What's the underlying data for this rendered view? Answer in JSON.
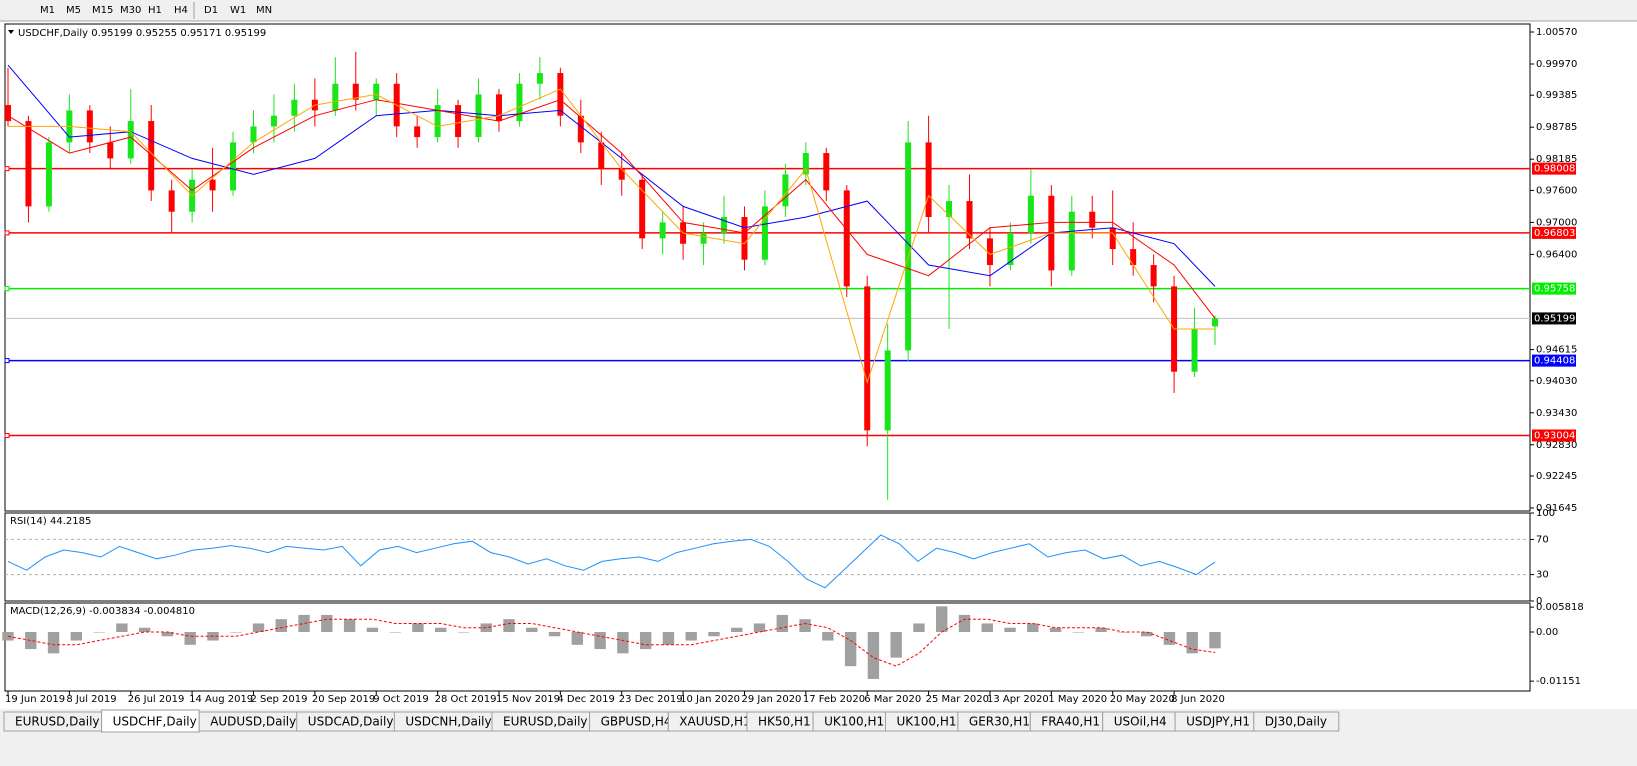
{
  "toolbar": {
    "timeframes": [
      "M1",
      "M5",
      "M15",
      "M30",
      "H1",
      "H4",
      "D1",
      "W1",
      "MN"
    ]
  },
  "tabs": {
    "items": [
      "EURUSD,Daily",
      "USDCHF,Daily",
      "AUDUSD,Daily",
      "USDCAD,Daily",
      "USDCNH,Daily",
      "EURUSD,Daily",
      "GBPUSD,H4",
      "XAUUSD,H1",
      "HK50,H1",
      "UK100,H1",
      "UK100,H1",
      "GER30,H1",
      "FRA40,H1",
      "USOil,H4",
      "USDJPY,H1",
      "DJ30,Daily"
    ],
    "active": 1
  },
  "chart_data": [
    {
      "type": "candlestick",
      "title": "USDCHF,Daily  0.95199 0.95255 0.95171 0.95199",
      "colors": {
        "up": "#19e619",
        "down": "#ff0000"
      },
      "open": [
        0.992,
        0.989,
        0.973,
        0.985,
        0.991,
        0.985,
        0.982,
        0.989,
        0.976,
        0.972,
        0.978,
        0.976,
        0.985,
        0.988,
        0.99,
        0.993,
        0.991,
        0.996,
        0.993,
        0.996,
        0.988,
        0.986,
        0.992,
        0.986,
        0.994,
        0.989,
        0.996,
        0.998,
        0.99,
        0.985,
        0.98,
        0.978,
        0.967,
        0.97,
        0.966,
        0.968,
        0.971,
        0.963,
        0.973,
        0.979,
        0.983,
        0.976,
        0.958,
        0.931,
        0.946,
        0.985,
        0.971,
        0.974,
        0.967,
        0.962,
        0.968,
        0.975,
        0.961,
        0.972,
        0.969,
        0.965,
        0.962,
        0.958,
        0.942,
        0.9505
      ],
      "high": [
        0.999,
        0.99,
        0.986,
        0.994,
        0.992,
        0.988,
        0.995,
        0.992,
        0.978,
        0.98,
        0.984,
        0.987,
        0.991,
        0.994,
        0.996,
        0.997,
        1.001,
        1.002,
        0.997,
        0.998,
        0.99,
        0.995,
        0.993,
        0.997,
        0.995,
        0.998,
        1.001,
        0.999,
        0.993,
        0.987,
        0.983,
        0.979,
        0.972,
        0.973,
        0.97,
        0.975,
        0.973,
        0.976,
        0.981,
        0.985,
        0.984,
        0.977,
        0.96,
        0.951,
        0.989,
        0.99,
        0.977,
        0.979,
        0.969,
        0.97,
        0.98,
        0.977,
        0.975,
        0.975,
        0.976,
        0.97,
        0.964,
        0.96,
        0.954,
        0.95255
      ],
      "low": [
        0.988,
        0.97,
        0.972,
        0.983,
        0.983,
        0.98,
        0.981,
        0.974,
        0.968,
        0.97,
        0.972,
        0.975,
        0.983,
        0.985,
        0.987,
        0.988,
        0.99,
        0.991,
        0.99,
        0.986,
        0.984,
        0.985,
        0.984,
        0.985,
        0.987,
        0.988,
        0.993,
        0.988,
        0.983,
        0.977,
        0.975,
        0.965,
        0.964,
        0.963,
        0.962,
        0.966,
        0.961,
        0.962,
        0.971,
        0.977,
        0.974,
        0.956,
        0.928,
        0.918,
        0.944,
        0.968,
        0.95,
        0.965,
        0.958,
        0.961,
        0.966,
        0.958,
        0.96,
        0.967,
        0.962,
        0.96,
        0.955,
        0.938,
        0.941,
        0.947
      ],
      "close": [
        0.989,
        0.973,
        0.985,
        0.991,
        0.985,
        0.982,
        0.989,
        0.976,
        0.972,
        0.978,
        0.976,
        0.985,
        0.988,
        0.99,
        0.993,
        0.991,
        0.996,
        0.993,
        0.996,
        0.988,
        0.986,
        0.992,
        0.986,
        0.994,
        0.989,
        0.996,
        0.998,
        0.99,
        0.985,
        0.98,
        0.978,
        0.967,
        0.97,
        0.966,
        0.968,
        0.971,
        0.963,
        0.973,
        0.979,
        0.983,
        0.976,
        0.958,
        0.931,
        0.946,
        0.985,
        0.971,
        0.974,
        0.967,
        0.962,
        0.968,
        0.975,
        0.961,
        0.972,
        0.969,
        0.965,
        0.962,
        0.958,
        0.942,
        0.95,
        0.95199
      ],
      "xlim": [
        0,
        59
      ],
      "xticks": [
        {
          "value": 0,
          "label": "19 Jun 2019"
        },
        {
          "value": 3,
          "label": "8 Jul 2019"
        },
        {
          "value": 6,
          "label": "26 Jul 2019"
        },
        {
          "value": 9,
          "label": "14 Aug 2019"
        },
        {
          "value": 12,
          "label": "2 Sep 2019"
        },
        {
          "value": 15,
          "label": "20 Sep 2019"
        },
        {
          "value": 18,
          "label": "9 Oct 2019"
        },
        {
          "value": 21,
          "label": "28 Oct 2019"
        },
        {
          "value": 24,
          "label": "15 Nov 2019"
        },
        {
          "value": 27,
          "label": "4 Dec 2019"
        },
        {
          "value": 30,
          "label": "23 Dec 2019"
        },
        {
          "value": 33,
          "label": "10 Jan 2020"
        },
        {
          "value": 36,
          "label": "29 Jan 2020"
        },
        {
          "value": 39,
          "label": "17 Feb 2020"
        },
        {
          "value": 42,
          "label": "6 Mar 2020"
        },
        {
          "value": 45,
          "label": "25 Mar 2020"
        },
        {
          "value": 48,
          "label": "13 Apr 2020"
        },
        {
          "value": 51,
          "label": "1 May 2020"
        },
        {
          "value": 54,
          "label": "20 May 2020"
        },
        {
          "value": 57,
          "label": "8 Jun 2020"
        }
      ],
      "ylim": [
        0.91588,
        1.0072
      ],
      "yticks": [
        {
          "value": 1.0057,
          "label": "1.00570"
        },
        {
          "value": 0.9997,
          "label": "0.99970"
        },
        0.99385,
        0.98785,
        0.98185,
        {
          "value": 0.976,
          "label": "0.97600"
        },
        {
          "value": 0.97,
          "label": "0.97000"
        },
        {
          "value": 0.964,
          "label": "0.96400"
        },
        0.94615,
        {
          "value": 0.9403,
          "label": "0.94030"
        },
        {
          "value": 0.9343,
          "label": "0.93430"
        },
        {
          "value": 0.9283,
          "label": "0.92830"
        },
        0.92245,
        0.91645
      ],
      "series": [
        {
          "color": "#0000ff",
          "x": [
            0,
            3,
            6,
            9,
            12,
            15,
            18,
            21,
            24,
            27,
            30,
            33,
            36,
            39,
            42,
            45,
            48,
            51,
            54,
            57,
            59
          ],
          "values": [
            0.9995,
            0.986,
            0.987,
            0.982,
            0.979,
            0.982,
            0.99,
            0.991,
            0.99,
            0.991,
            0.982,
            0.973,
            0.969,
            0.971,
            0.974,
            0.962,
            0.96,
            0.968,
            0.969,
            0.966,
            0.958
          ]
        },
        {
          "color": "#ff0000",
          "x": [
            0,
            3,
            6,
            9,
            12,
            15,
            18,
            21,
            24,
            27,
            30,
            33,
            36,
            39,
            42,
            45,
            48,
            51,
            54,
            57,
            59
          ],
          "values": [
            0.99,
            0.983,
            0.986,
            0.976,
            0.984,
            0.99,
            0.993,
            0.991,
            0.989,
            0.993,
            0.983,
            0.97,
            0.968,
            0.978,
            0.964,
            0.96,
            0.969,
            0.97,
            0.97,
            0.962,
            0.952
          ]
        },
        {
          "color": "#ffa500",
          "x": [
            0,
            3,
            6,
            9,
            12,
            15,
            18,
            21,
            24,
            27,
            30,
            33,
            36,
            39,
            42,
            45,
            48,
            51,
            54,
            57,
            59
          ],
          "values": [
            0.988,
            0.988,
            0.987,
            0.975,
            0.985,
            0.992,
            0.994,
            0.988,
            0.99,
            0.995,
            0.98,
            0.968,
            0.966,
            0.98,
            0.94,
            0.975,
            0.964,
            0.968,
            0.968,
            0.95,
            0.95
          ]
        }
      ],
      "levels": [
        {
          "value": 0.98008,
          "color": "#ff0000"
        },
        {
          "value": 0.96803,
          "color": "#ff0000"
        },
        {
          "value": 0.95758,
          "color": "#00ee00"
        },
        {
          "value": 0.94408,
          "color": "#0000ff"
        },
        {
          "value": 0.93004,
          "color": "#ff0000"
        }
      ],
      "last_price": 0.95199
    },
    {
      "type": "line",
      "title": "RSI(14) 44.2185",
      "ylim": [
        0,
        100
      ],
      "yticks": [
        0,
        30,
        70,
        100
      ],
      "levels": [
        30,
        70
      ],
      "series": [
        {
          "color": "#1e90ff",
          "values": [
            45,
            35,
            50,
            58,
            55,
            50,
            62,
            55,
            48,
            52,
            58,
            60,
            63,
            60,
            55,
            62,
            60,
            58,
            62,
            40,
            58,
            62,
            55,
            60,
            65,
            68,
            55,
            50,
            42,
            48,
            40,
            35,
            45,
            48,
            50,
            45,
            55,
            60,
            65,
            68,
            70,
            62,
            45,
            25,
            15,
            35,
            55,
            75,
            65,
            45,
            60,
            55,
            48,
            55,
            60,
            65,
            50,
            55,
            58,
            48,
            52,
            40,
            45,
            38,
            30,
            44.2185
          ]
        }
      ]
    },
    {
      "type": "bar",
      "title": "MACD(12,26,9) -0.003834 -0.004810",
      "ylim": [
        -0.01382,
        0.00679
      ],
      "yticks": [
        0.005818,
        {
          "value": 0,
          "label": "0.00"
        },
        -0.01151
      ],
      "series": [
        {
          "color": "#a0a0a0",
          "values": [
            -0.002,
            -0.004,
            -0.005,
            -0.002,
            0,
            0.002,
            0.001,
            -0.001,
            -0.003,
            -0.002,
            0,
            0.002,
            0.003,
            0.004,
            0.004,
            0.003,
            0.001,
            0,
            0.002,
            0.001,
            0,
            0.002,
            0.003,
            0.001,
            -0.001,
            -0.003,
            -0.004,
            -0.005,
            -0.004,
            -0.003,
            -0.002,
            -0.001,
            0.001,
            0.002,
            0.004,
            0.003,
            -0.002,
            -0.008,
            -0.011,
            -0.006,
            0.002,
            0.006,
            0.004,
            0.002,
            0.001,
            0.002,
            0.001,
            0,
            0.001,
            0,
            -0.001,
            -0.003,
            -0.005,
            -0.003834
          ]
        },
        {
          "type": "line",
          "dash": true,
          "color": "#ff0000",
          "values": [
            -0.001,
            -0.002,
            -0.003,
            -0.003,
            -0.002,
            -0.001,
            0,
            0,
            -0.001,
            -0.001,
            -0.001,
            0,
            0.001,
            0.002,
            0.003,
            0.003,
            0.003,
            0.002,
            0.002,
            0.002,
            0.001,
            0.001,
            0.002,
            0.002,
            0.001,
            0,
            -0.001,
            -0.002,
            -0.003,
            -0.003,
            -0.003,
            -0.002,
            -0.001,
            0,
            0.001,
            0.002,
            0.001,
            -0.002,
            -0.006,
            -0.008,
            -0.005,
            0,
            0.003,
            0.003,
            0.002,
            0.002,
            0.001,
            0.001,
            0.001,
            0,
            0,
            -0.002,
            -0.004,
            -0.00481
          ]
        }
      ]
    }
  ]
}
